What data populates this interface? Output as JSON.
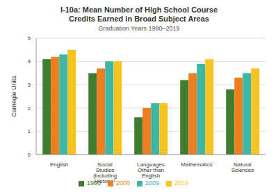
{
  "chart_data": {
    "type": "bar",
    "title": "I-10a: Mean Number of High School Course Credits Earned in Broad Subject Areas",
    "subtitle": "Graduation Years 1990–2019",
    "y_label": "Carnegie Units",
    "categories": [
      "English",
      "Social Studies (including History)¹",
      "Languages Other than English",
      "Mathematics",
      "Natural Sciences"
    ],
    "series": [
      {
        "name": "1990",
        "color": "#3f7d2f",
        "values": [
          4.1,
          3.5,
          1.6,
          3.2,
          2.8
        ]
      },
      {
        "name": "2000",
        "color": "#f07f22",
        "values": [
          4.2,
          3.7,
          2.0,
          3.5,
          3.3
        ]
      },
      {
        "name": "2009",
        "color": "#3db7a8",
        "values": [
          4.3,
          4.0,
          2.2,
          3.9,
          3.5
        ]
      },
      {
        "name": "2019",
        "color": "#f6c323",
        "values": [
          4.5,
          4.0,
          2.2,
          4.1,
          3.7
        ]
      }
    ],
    "ylim": [
      0,
      5
    ],
    "yticks": [
      0,
      1,
      2,
      3,
      4,
      5
    ],
    "grid": true,
    "legend": "bottom"
  }
}
